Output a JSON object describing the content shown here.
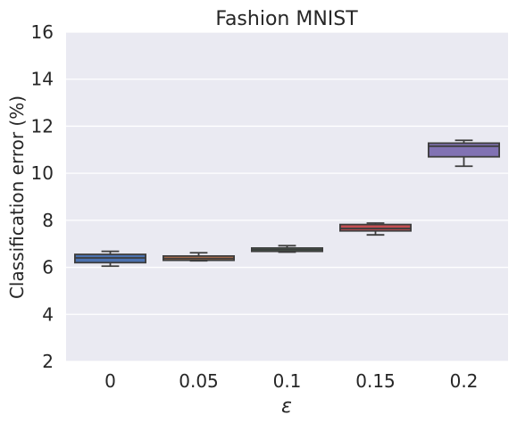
{
  "chart_data": {
    "type": "box",
    "title": "Fashion MNIST",
    "xlabel": "ε",
    "ylabel": "Classification error (%)",
    "ylim": [
      2,
      16
    ],
    "yticks": [
      2,
      4,
      6,
      8,
      10,
      12,
      14,
      16
    ],
    "grid": true,
    "categories": [
      "0",
      "0.05",
      "0.1",
      "0.15",
      "0.2"
    ],
    "boxes": [
      {
        "label": "0",
        "whisker_low": 6.05,
        "q1": 6.2,
        "median": 6.4,
        "q3": 6.55,
        "whisker_high": 6.68,
        "color": "#4c72b0"
      },
      {
        "label": "0.05",
        "whisker_low": 6.28,
        "q1": 6.3,
        "median": 6.38,
        "q3": 6.48,
        "whisker_high": 6.62,
        "color": "#dd8452"
      },
      {
        "label": "0.1",
        "whisker_low": 6.65,
        "q1": 6.68,
        "median": 6.75,
        "q3": 6.82,
        "whisker_high": 6.92,
        "color": "#55a868"
      },
      {
        "label": "0.15",
        "whisker_low": 7.38,
        "q1": 7.55,
        "median": 7.65,
        "q3": 7.82,
        "whisker_high": 7.88,
        "color": "#c44e52"
      },
      {
        "label": "0.2",
        "whisker_low": 10.3,
        "q1": 10.7,
        "median": 11.15,
        "q3": 11.28,
        "whisker_high": 11.4,
        "color": "#8172b3"
      }
    ]
  }
}
